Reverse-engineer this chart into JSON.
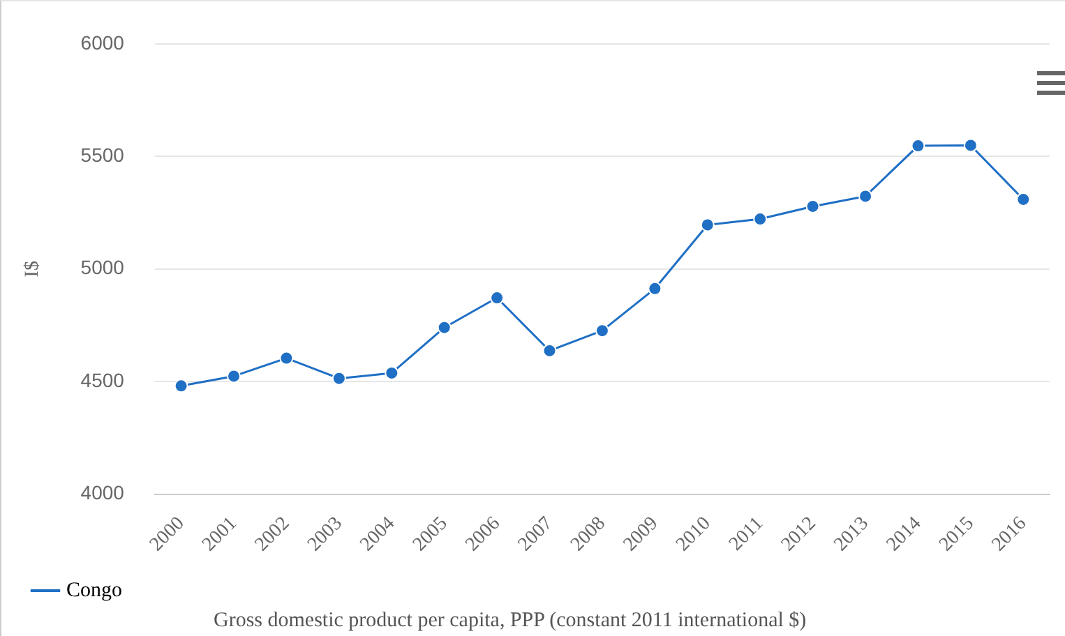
{
  "chart_data": {
    "type": "line",
    "ylabel": "I$",
    "categories": [
      "2000",
      "2001",
      "2002",
      "2003",
      "2004",
      "2005",
      "2006",
      "2007",
      "2008",
      "2009",
      "2010",
      "2011",
      "2012",
      "2013",
      "2014",
      "2015",
      "2016"
    ],
    "series": [
      {
        "name": "Congo",
        "color": "#1f6fc5",
        "values": [
          4481,
          4524,
          4604,
          4514,
          4538,
          4740,
          4872,
          4637,
          4726,
          4913,
          5196,
          5222,
          5278,
          5323,
          5547,
          5549,
          5309
        ]
      }
    ],
    "ylim": [
      4000,
      6000
    ],
    "yticks": [
      4000,
      4500,
      5000,
      5500,
      6000
    ],
    "grid": "y",
    "legend": "bottom left",
    "marker": "circle",
    "line_style": "solid",
    "annotations": [
      "Gross domestic product per capita, PPP (constant 2011 international $)"
    ]
  }
}
